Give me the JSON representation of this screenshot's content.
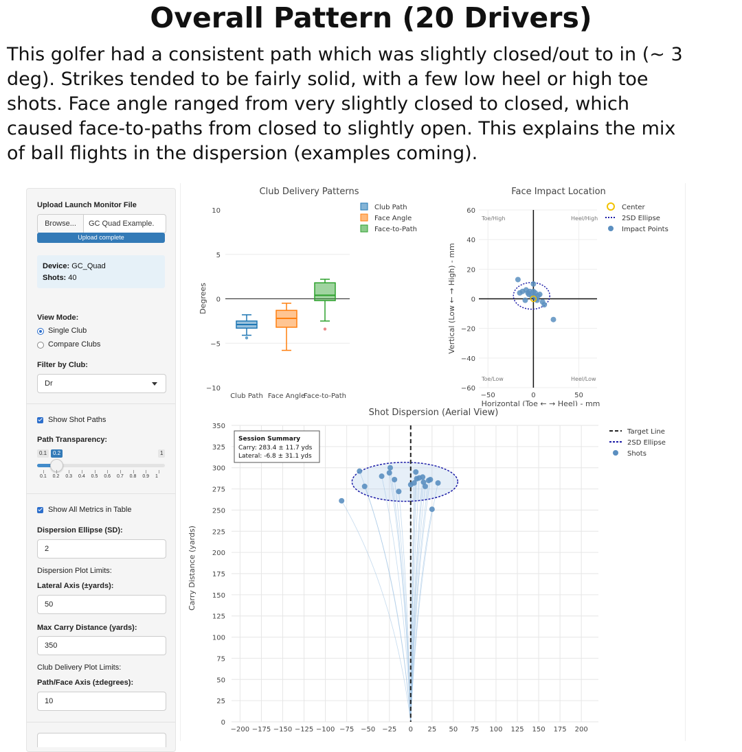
{
  "slide": {
    "title": "Overall Pattern (20 Drivers)",
    "intro_lines": [
      "This golfer had a consistent path which was slightly closed/out to in (~ 3",
      "deg). Strikes tended to be fairly solid, with a few low heel or high toe",
      "shots. Face angle ranged from very slightly closed to closed, which",
      "caused face-to-paths from closed to slightly open. This explains the mix",
      "of ball flights in the dispersion (examples coming)."
    ]
  },
  "sidebar": {
    "upload_label": "Upload Launch Monitor File",
    "browse_button": "Browse...",
    "file_name": "GC Quad Example.",
    "upload_status": "Upload complete",
    "device_label": "Device:",
    "device_value": "GC_Quad",
    "shots_label": "Shots:",
    "shots_value": "40",
    "view_mode_label": "View Mode:",
    "view_modes": [
      {
        "label": "Single Club",
        "selected": true
      },
      {
        "label": "Compare Clubs",
        "selected": false
      }
    ],
    "filter_label": "Filter by Club:",
    "filter_value": "Dr",
    "show_shot_paths": {
      "label": "Show Shot Paths",
      "checked": true
    },
    "path_transparency": {
      "label": "Path Transparency:",
      "min_label": "0.1",
      "value_label": "0.2",
      "max_label": "1",
      "value": 0.2,
      "ticks": [
        "0.1",
        "0.2",
        "0.3",
        "0.4",
        "0.5",
        "0.6",
        "0.7",
        "0.8",
        "0.9",
        "1"
      ]
    },
    "show_all_metrics": {
      "label": "Show All Metrics in Table",
      "checked": true
    },
    "ellipse_sd_label": "Dispersion Ellipse (SD):",
    "ellipse_sd_value": "2",
    "plot_limits_label": "Dispersion Plot Limits:",
    "lateral_axis_label": "Lateral Axis (±yards):",
    "lateral_axis_value": "50",
    "max_carry_label": "Max Carry Distance (yards):",
    "max_carry_value": "350",
    "club_delivery_limits_label": "Club Delivery Plot Limits:",
    "path_face_axis_label": "Path/Face Axis (±degrees):",
    "path_face_axis_value": "10"
  },
  "colors": {
    "club_path": "#1f77b4",
    "face_angle": "#ff7f0e",
    "face_to_path": "#2ca02c",
    "points": "#5b8fc0",
    "ellipse": "#1a1aa6",
    "center": "#f2c200",
    "accent": "#337ab7"
  },
  "chart_data": [
    {
      "type": "box",
      "title": "Club Delivery Patterns",
      "xlabel": "",
      "ylabel": "Degrees",
      "ylim": [
        -10,
        10
      ],
      "yticks": [
        "10",
        "5",
        "0",
        "−5",
        "−10"
      ],
      "categories": [
        "Club Path",
        "Face Angle",
        "Face-to-Path"
      ],
      "series": [
        {
          "name": "Club Path",
          "min": -4.1,
          "q1": -3.3,
          "median": -2.9,
          "q3": -2.5,
          "max": -1.8,
          "outliers": [
            -4.4
          ]
        },
        {
          "name": "Face Angle",
          "min": -5.8,
          "q1": -3.2,
          "median": -2.2,
          "q3": -1.3,
          "max": -0.5,
          "outliers": []
        },
        {
          "name": "Face-to-Path",
          "min": -2.5,
          "q1": -0.2,
          "median": 0.4,
          "q3": 1.8,
          "max": 2.2,
          "outliers": [
            -3.4
          ]
        }
      ],
      "legend": [
        "Club Path",
        "Face Angle",
        "Face-to-Path"
      ],
      "legend_position": "top-right",
      "grid": true
    },
    {
      "type": "scatter",
      "title": "Face Impact Location",
      "xlabel": "Horizontal (Toe ← → Heel) - mm",
      "ylabel": "Vertical (Low ← → High) - mm",
      "xlim": [
        -60,
        70
      ],
      "ylim": [
        -60,
        60
      ],
      "xticks": [
        "−50",
        "0",
        "50"
      ],
      "yticks": [
        "60",
        "40",
        "20",
        "0",
        "−20",
        "−40",
        "−60"
      ],
      "corner_labels": [
        "Toe/High",
        "Heel/High",
        "Toe/Low",
        "Heel/Low"
      ],
      "legend": [
        "Center",
        "2SD Ellipse",
        "Impact Points"
      ],
      "legend_position": "top-right",
      "ellipse": {
        "cx": -2,
        "cy": 2,
        "rx": 20,
        "ry": 9
      },
      "points": [
        [
          -17,
          13
        ],
        [
          -15,
          4
        ],
        [
          -12,
          5
        ],
        [
          -8,
          6
        ],
        [
          -6,
          4
        ],
        [
          -4,
          5
        ],
        [
          -2,
          2
        ],
        [
          0,
          10
        ],
        [
          0,
          5
        ],
        [
          1,
          2
        ],
        [
          3,
          0
        ],
        [
          5,
          2
        ],
        [
          7,
          3
        ],
        [
          10,
          -2
        ],
        [
          12,
          -4
        ],
        [
          -9,
          -1
        ],
        [
          -5,
          3
        ],
        [
          2,
          4
        ],
        [
          4,
          -1
        ],
        [
          22,
          -14
        ]
      ],
      "grid": true
    },
    {
      "type": "scatter",
      "title": "Shot Dispersion (Aerial View)",
      "xlabel": "",
      "ylabel": "Carry Distance (yards)",
      "xlim": [
        -210,
        220
      ],
      "ylim": [
        0,
        350
      ],
      "xticks": [
        "−200",
        "−175",
        "−150",
        "−125",
        "−100",
        "−75",
        "−50",
        "−25",
        "0",
        "25",
        "50",
        "75",
        "100",
        "125",
        "150",
        "175",
        "200"
      ],
      "yticks": [
        "350",
        "325",
        "300",
        "275",
        "250",
        "225",
        "200",
        "175",
        "150",
        "125",
        "100",
        "75",
        "50",
        "25",
        "0"
      ],
      "legend": [
        "Target Line",
        "2SD Ellipse",
        "Shots"
      ],
      "legend_position": "top-right",
      "summary": {
        "title": "Session Summary",
        "carry": "Carry: 283.4 ± 11.7 yds",
        "lateral": "Lateral: -6.8 ± 31.1 yds"
      },
      "ellipse": {
        "cx": -6.8,
        "cy": 283.4,
        "rx": 62,
        "ry": 23
      },
      "shots": [
        [
          -81,
          261
        ],
        [
          -60,
          296
        ],
        [
          -54,
          278
        ],
        [
          -34,
          290
        ],
        [
          -25,
          294
        ],
        [
          -24,
          300
        ],
        [
          -19,
          286
        ],
        [
          -14,
          272
        ],
        [
          0,
          280
        ],
        [
          4,
          282
        ],
        [
          6,
          295
        ],
        [
          7,
          287
        ],
        [
          10,
          288
        ],
        [
          14,
          289
        ],
        [
          15,
          283
        ],
        [
          17,
          278
        ],
        [
          21,
          285
        ],
        [
          23,
          286
        ],
        [
          25,
          251
        ],
        [
          32,
          282
        ]
      ],
      "grid": true
    }
  ]
}
